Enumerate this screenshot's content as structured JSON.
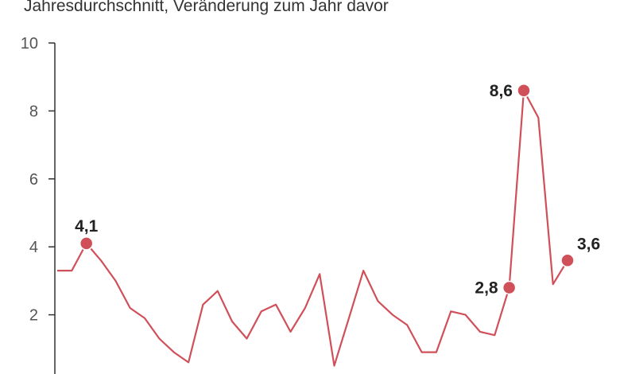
{
  "chart_data": {
    "type": "line",
    "subtitle": "Jahresdurchschnitt, Veränderung zum Jahr davor",
    "ylim": [
      0,
      10
    ],
    "y_ticks": [
      {
        "value": 2,
        "label": "2"
      },
      {
        "value": 4,
        "label": "4"
      },
      {
        "value": 6,
        "label": "6"
      },
      {
        "value": 8,
        "label": "8"
      },
      {
        "value": 10,
        "label": "10"
      }
    ],
    "grid": false,
    "color": "#d0505a",
    "series": [
      {
        "values": [
          3.3,
          3.3,
          4.1,
          3.6,
          3.0,
          2.2,
          1.9,
          1.3,
          0.9,
          0.6,
          2.3,
          2.7,
          1.8,
          1.3,
          2.1,
          2.3,
          1.5,
          2.2,
          3.2,
          0.5,
          1.9,
          3.3,
          2.4,
          2.0,
          1.7,
          0.9,
          0.9,
          2.1,
          2.0,
          1.5,
          1.4,
          2.8,
          8.6,
          7.8,
          2.9,
          3.6
        ]
      }
    ],
    "labeled_points": [
      {
        "index": 2,
        "label": "4,1",
        "position": "above"
      },
      {
        "index": 31,
        "label": "2,8",
        "position": "left"
      },
      {
        "index": 32,
        "label": "8,6",
        "position": "left"
      },
      {
        "index": 35,
        "label": "3,6",
        "position": "above-right"
      }
    ]
  }
}
